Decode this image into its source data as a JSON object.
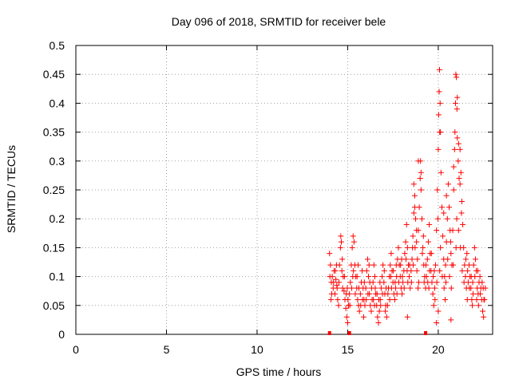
{
  "chart_data": {
    "type": "scatter",
    "title": "Day 096 of 2018, SRMTID for receiver bele",
    "xlabel": "GPS time / hours",
    "ylabel": "SRMTID / TECUs",
    "xlim": [
      0,
      23
    ],
    "ylim": [
      0,
      0.5
    ],
    "x_ticks": [
      0,
      5,
      10,
      15,
      20
    ],
    "x_tick_labels": [
      "0",
      "5",
      "10",
      "15",
      "20"
    ],
    "y_ticks": [
      0,
      0.05,
      0.1,
      0.15,
      0.2,
      0.25,
      0.3,
      0.35,
      0.4,
      0.45,
      0.5
    ],
    "y_tick_labels": [
      "0",
      "0.05",
      "0.1",
      "0.15",
      "0.2",
      "0.25",
      "0.3",
      "0.35",
      "0.4",
      "0.45",
      "0.5"
    ],
    "grid": true,
    "marker": "+",
    "color": "#ff0000",
    "series": [
      {
        "name": "SRMTID",
        "points": [
          [
            14.0,
            0.14
          ],
          [
            14.05,
            0.12
          ],
          [
            14.1,
            0.09
          ],
          [
            14.15,
            0.1
          ],
          [
            14.2,
            0.08
          ],
          [
            14.25,
            0.11
          ],
          [
            14.3,
            0.07
          ],
          [
            14.35,
            0.095
          ],
          [
            14.4,
            0.085
          ],
          [
            14.45,
            0.06
          ],
          [
            14.5,
            0.05
          ],
          [
            14.55,
            0.12
          ],
          [
            14.6,
            0.15
          ],
          [
            14.62,
            0.17
          ],
          [
            14.65,
            0.16
          ],
          [
            14.7,
            0.13
          ],
          [
            14.75,
            0.1
          ],
          [
            14.8,
            0.075
          ],
          [
            14.85,
            0.06
          ],
          [
            14.9,
            0.045
          ],
          [
            14.95,
            0.03
          ],
          [
            15.0,
            0.02
          ],
          [
            15.05,
            0.05
          ],
          [
            15.1,
            0.07
          ],
          [
            15.15,
            0.09
          ],
          [
            15.2,
            0.12
          ],
          [
            15.25,
            0.15
          ],
          [
            15.3,
            0.17
          ],
          [
            15.35,
            0.16
          ],
          [
            15.4,
            0.12
          ],
          [
            15.45,
            0.1
          ],
          [
            15.5,
            0.08
          ],
          [
            15.55,
            0.06
          ],
          [
            15.6,
            0.05
          ],
          [
            15.65,
            0.04
          ],
          [
            15.7,
            0.07
          ],
          [
            15.75,
            0.09
          ],
          [
            15.8,
            0.11
          ],
          [
            15.85,
            0.08
          ],
          [
            15.9,
            0.06
          ],
          [
            15.95,
            0.05
          ],
          [
            16.0,
            0.08
          ],
          [
            16.05,
            0.11
          ],
          [
            16.1,
            0.13
          ],
          [
            16.15,
            0.1
          ],
          [
            16.2,
            0.07
          ],
          [
            16.25,
            0.05
          ],
          [
            16.3,
            0.04
          ],
          [
            16.35,
            0.06
          ],
          [
            16.4,
            0.09
          ],
          [
            16.45,
            0.12
          ],
          [
            16.5,
            0.1
          ],
          [
            16.55,
            0.07
          ],
          [
            16.6,
            0.05
          ],
          [
            16.65,
            0.03
          ],
          [
            16.7,
            0.02
          ],
          [
            16.75,
            0.04
          ],
          [
            16.8,
            0.06
          ],
          [
            16.85,
            0.08
          ],
          [
            16.9,
            0.1
          ],
          [
            16.95,
            0.12
          ],
          [
            17.0,
            0.09
          ],
          [
            17.05,
            0.07
          ],
          [
            17.1,
            0.05
          ],
          [
            17.15,
            0.03
          ],
          [
            17.2,
            0.05
          ],
          [
            17.25,
            0.08
          ],
          [
            17.3,
            0.1
          ],
          [
            17.35,
            0.12
          ],
          [
            17.4,
            0.14
          ],
          [
            17.45,
            0.11
          ],
          [
            17.5,
            0.09
          ],
          [
            17.55,
            0.07
          ],
          [
            17.6,
            0.06
          ],
          [
            17.65,
            0.08
          ],
          [
            17.7,
            0.1
          ],
          [
            17.75,
            0.13
          ],
          [
            17.8,
            0.15
          ],
          [
            17.85,
            0.12
          ],
          [
            17.9,
            0.1
          ],
          [
            17.95,
            0.08
          ],
          [
            18.0,
            0.07
          ],
          [
            18.05,
            0.09
          ],
          [
            18.1,
            0.11
          ],
          [
            18.15,
            0.14
          ],
          [
            18.2,
            0.16
          ],
          [
            18.25,
            0.19
          ],
          [
            18.3,
            0.15
          ],
          [
            18.35,
            0.12
          ],
          [
            18.4,
            0.1
          ],
          [
            18.45,
            0.08
          ],
          [
            18.5,
            0.11
          ],
          [
            18.55,
            0.13
          ],
          [
            18.6,
            0.17
          ],
          [
            18.65,
            0.21
          ],
          [
            18.7,
            0.24
          ],
          [
            18.75,
            0.2
          ],
          [
            18.8,
            0.16
          ],
          [
            18.85,
            0.13
          ],
          [
            18.9,
            0.18
          ],
          [
            18.95,
            0.22
          ],
          [
            19.0,
            0.27
          ],
          [
            19.02,
            0.3
          ],
          [
            19.05,
            0.25
          ],
          [
            19.1,
            0.2
          ],
          [
            19.15,
            0.15
          ],
          [
            19.2,
            0.12
          ],
          [
            19.25,
            0.1
          ],
          [
            19.3,
            0.08
          ],
          [
            19.35,
            0.1
          ],
          [
            19.4,
            0.13
          ],
          [
            19.45,
            0.16
          ],
          [
            19.5,
            0.19
          ],
          [
            19.55,
            0.14
          ],
          [
            19.6,
            0.11
          ],
          [
            19.65,
            0.09
          ],
          [
            19.7,
            0.07
          ],
          [
            19.75,
            0.05
          ],
          [
            19.8,
            0.08
          ],
          [
            19.85,
            0.12
          ],
          [
            19.9,
            0.18
          ],
          [
            19.95,
            0.25
          ],
          [
            20.0,
            0.32
          ],
          [
            20.02,
            0.38
          ],
          [
            20.05,
            0.42
          ],
          [
            20.07,
            0.458
          ],
          [
            20.1,
            0.4
          ],
          [
            20.12,
            0.35
          ],
          [
            20.15,
            0.28
          ],
          [
            20.2,
            0.22
          ],
          [
            20.25,
            0.17
          ],
          [
            20.3,
            0.13
          ],
          [
            20.35,
            0.1
          ],
          [
            20.4,
            0.12
          ],
          [
            20.45,
            0.16
          ],
          [
            20.5,
            0.2
          ],
          [
            20.55,
            0.26
          ],
          [
            20.6,
            0.22
          ],
          [
            20.65,
            0.18
          ],
          [
            20.7,
            0.14
          ],
          [
            20.75,
            0.12
          ],
          [
            20.8,
            0.18
          ],
          [
            20.85,
            0.25
          ],
          [
            20.9,
            0.32
          ],
          [
            20.92,
            0.35
          ],
          [
            20.95,
            0.4
          ],
          [
            20.97,
            0.45
          ],
          [
            21.0,
            0.445
          ],
          [
            21.03,
            0.39
          ],
          [
            21.05,
            0.34
          ],
          [
            21.1,
            0.3
          ],
          [
            21.15,
            0.27
          ],
          [
            21.2,
            0.32
          ],
          [
            21.25,
            0.28
          ],
          [
            21.3,
            0.23
          ],
          [
            21.35,
            0.19
          ],
          [
            21.4,
            0.15
          ],
          [
            21.45,
            0.12
          ],
          [
            21.5,
            0.1
          ],
          [
            21.55,
            0.08
          ],
          [
            21.6,
            0.06
          ],
          [
            21.65,
            0.09
          ],
          [
            21.7,
            0.12
          ],
          [
            21.75,
            0.1
          ],
          [
            21.8,
            0.08
          ],
          [
            21.85,
            0.06
          ],
          [
            21.9,
            0.09
          ],
          [
            21.95,
            0.12
          ],
          [
            22.0,
            0.15
          ],
          [
            22.05,
            0.13
          ],
          [
            22.1,
            0.11
          ],
          [
            22.15,
            0.08
          ],
          [
            22.2,
            0.07
          ],
          [
            22.25,
            0.09
          ],
          [
            22.3,
            0.1
          ],
          [
            22.35,
            0.08
          ],
          [
            22.4,
            0.06
          ],
          [
            22.45,
            0.04
          ],
          [
            22.5,
            0.03
          ],
          [
            22.55,
            0.06
          ],
          [
            22.6,
            0.08
          ],
          [
            14.02,
            0.1
          ],
          [
            14.12,
            0.07
          ],
          [
            14.22,
            0.09
          ],
          [
            14.32,
            0.11
          ],
          [
            14.42,
            0.08
          ],
          [
            14.52,
            0.09
          ],
          [
            14.72,
            0.08
          ],
          [
            14.82,
            0.1
          ],
          [
            14.92,
            0.07
          ],
          [
            15.02,
            0.06
          ],
          [
            15.12,
            0.05
          ],
          [
            15.22,
            0.08
          ],
          [
            15.32,
            0.11
          ],
          [
            15.42,
            0.07
          ],
          [
            15.52,
            0.1
          ],
          [
            15.62,
            0.08
          ],
          [
            15.72,
            0.05
          ],
          [
            15.82,
            0.06
          ],
          [
            15.92,
            0.09
          ],
          [
            16.02,
            0.06
          ],
          [
            16.12,
            0.07
          ],
          [
            16.22,
            0.09
          ],
          [
            16.32,
            0.08
          ],
          [
            16.42,
            0.06
          ],
          [
            16.52,
            0.08
          ],
          [
            16.62,
            0.07
          ],
          [
            16.72,
            0.06
          ],
          [
            16.82,
            0.05
          ],
          [
            16.92,
            0.07
          ],
          [
            17.02,
            0.11
          ],
          [
            17.12,
            0.08
          ],
          [
            17.22,
            0.07
          ],
          [
            17.32,
            0.06
          ],
          [
            17.42,
            0.08
          ],
          [
            17.52,
            0.11
          ],
          [
            17.62,
            0.09
          ],
          [
            17.72,
            0.07
          ],
          [
            17.82,
            0.09
          ],
          [
            17.92,
            0.12
          ],
          [
            18.02,
            0.1
          ],
          [
            18.12,
            0.08
          ],
          [
            18.22,
            0.13
          ],
          [
            18.32,
            0.09
          ],
          [
            18.42,
            0.12
          ],
          [
            18.52,
            0.09
          ],
          [
            18.62,
            0.12
          ],
          [
            18.72,
            0.15
          ],
          [
            18.82,
            0.11
          ],
          [
            18.92,
            0.09
          ],
          [
            19.12,
            0.14
          ],
          [
            19.22,
            0.09
          ],
          [
            19.32,
            0.12
          ],
          [
            19.42,
            0.09
          ],
          [
            19.52,
            0.11
          ],
          [
            19.62,
            0.14
          ],
          [
            19.72,
            0.1
          ],
          [
            19.82,
            0.06
          ],
          [
            19.92,
            0.09
          ],
          [
            20.12,
            0.15
          ],
          [
            20.22,
            0.1
          ],
          [
            20.32,
            0.08
          ],
          [
            20.42,
            0.09
          ],
          [
            20.52,
            0.13
          ],
          [
            20.62,
            0.1
          ],
          [
            20.72,
            0.08
          ],
          [
            20.82,
            0.12
          ],
          [
            21.02,
            0.2
          ],
          [
            21.12,
            0.18
          ],
          [
            21.22,
            0.15
          ],
          [
            21.32,
            0.11
          ],
          [
            21.42,
            0.09
          ],
          [
            21.52,
            0.13
          ],
          [
            21.62,
            0.11
          ],
          [
            21.72,
            0.08
          ],
          [
            21.82,
            0.1
          ],
          [
            21.92,
            0.07
          ],
          [
            22.02,
            0.1
          ],
          [
            22.12,
            0.06
          ],
          [
            22.22,
            0.05
          ],
          [
            22.32,
            0.07
          ],
          [
            22.42,
            0.09
          ],
          [
            22.52,
            0.06
          ],
          [
            14.08,
            0.06
          ],
          [
            14.38,
            0.12
          ],
          [
            14.68,
            0.11
          ],
          [
            14.98,
            0.08
          ],
          [
            15.28,
            0.1
          ],
          [
            15.58,
            0.12
          ],
          [
            15.88,
            0.03
          ],
          [
            16.18,
            0.12
          ],
          [
            16.48,
            0.05
          ],
          [
            16.78,
            0.09
          ],
          [
            17.08,
            0.04
          ],
          [
            17.38,
            0.1
          ],
          [
            17.68,
            0.12
          ],
          [
            17.98,
            0.13
          ],
          [
            18.28,
            0.11
          ],
          [
            18.58,
            0.15
          ],
          [
            18.88,
            0.08
          ],
          [
            19.18,
            0.17
          ],
          [
            19.48,
            0.08
          ],
          [
            19.78,
            0.11
          ],
          [
            20.08,
            0.11
          ],
          [
            20.38,
            0.06
          ],
          [
            20.68,
            0.16
          ],
          [
            20.98,
            0.15
          ],
          [
            21.28,
            0.21
          ],
          [
            21.58,
            0.14
          ],
          [
            21.88,
            0.05
          ],
          [
            22.18,
            0.11
          ],
          [
            22.48,
            0.08
          ],
          [
            18.3,
            0.03
          ],
          [
            19.9,
            0.02
          ],
          [
            20.7,
            0.025
          ],
          [
            20.0,
            0.04
          ],
          [
            18.9,
            0.3
          ],
          [
            19.05,
            0.28
          ],
          [
            20.08,
            0.35
          ],
          [
            20.85,
            0.29
          ],
          [
            21.05,
            0.41
          ],
          [
            21.12,
            0.33
          ],
          [
            21.2,
            0.26
          ],
          [
            20.45,
            0.24
          ],
          [
            20.3,
            0.21
          ],
          [
            19.98,
            0.2
          ],
          [
            18.7,
            0.22
          ],
          [
            18.65,
            0.26
          ],
          [
            18.8,
            0.18
          ]
        ]
      }
    ],
    "axis_markers_x": [
      14.0,
      15.1,
      19.3
    ]
  }
}
